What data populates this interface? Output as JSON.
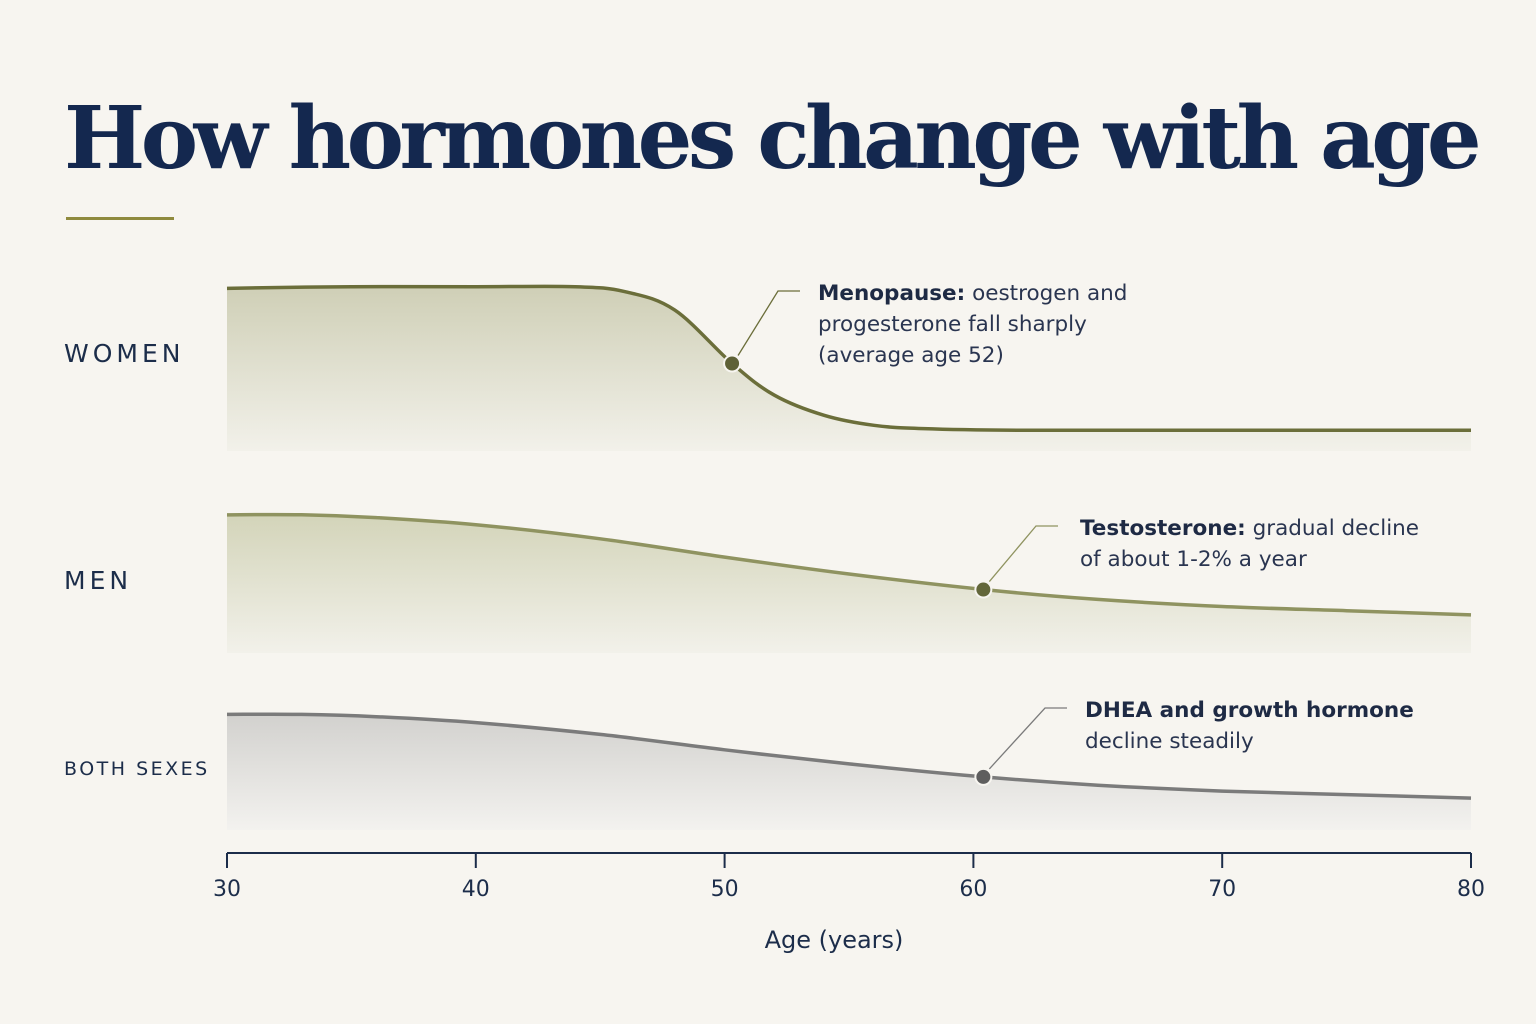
{
  "title": "How hormones change with age",
  "colors": {
    "title": "#14284f",
    "rule": "#8f8a3e",
    "women": "#6b6e3a",
    "men": "#8f9360",
    "both": "#7b7b7b"
  },
  "chart_data": {
    "type": "area",
    "xlabel": "Age (years)",
    "ylabel": "",
    "xlim": [
      30,
      80
    ],
    "x_ticks": [
      30,
      40,
      50,
      60,
      70,
      80
    ],
    "series": [
      {
        "name": "WOMEN",
        "x": [
          30,
          35,
          40,
          44,
          46,
          48,
          50.3,
          52,
          54,
          56,
          58,
          62,
          70,
          80
        ],
        "values": [
          0.98,
          0.99,
          0.99,
          0.99,
          0.96,
          0.85,
          0.53,
          0.34,
          0.22,
          0.16,
          0.14,
          0.13,
          0.13,
          0.13
        ],
        "marker": {
          "x": 50.3,
          "y": 0.53,
          "bold": "Menopause:",
          "lines": [
            "oestrogen and",
            "progesterone fall sharply",
            "(average age 52)"
          ]
        }
      },
      {
        "name": "MEN",
        "x": [
          30,
          33,
          36,
          40,
          45,
          50,
          55,
          60.4,
          65,
          70,
          75,
          80
        ],
        "values": [
          0.98,
          0.98,
          0.96,
          0.91,
          0.81,
          0.68,
          0.56,
          0.45,
          0.38,
          0.33,
          0.3,
          0.27
        ],
        "marker": {
          "x": 60.4,
          "y": 0.45,
          "bold": "Testosterone:",
          "lines": [
            "gradual decline",
            "of about 1-2% a year"
          ]
        }
      },
      {
        "name": "BOTH SEXES",
        "x": [
          30,
          33,
          36,
          40,
          45,
          50,
          55,
          60.4,
          65,
          70,
          75,
          80
        ],
        "values": [
          0.98,
          0.98,
          0.96,
          0.91,
          0.81,
          0.68,
          0.56,
          0.45,
          0.38,
          0.33,
          0.3,
          0.27
        ],
        "marker": {
          "x": 60.4,
          "y": 0.45,
          "bold": "DHEA and growth hormone",
          "lines": [
            "decline steadily"
          ]
        }
      }
    ]
  }
}
